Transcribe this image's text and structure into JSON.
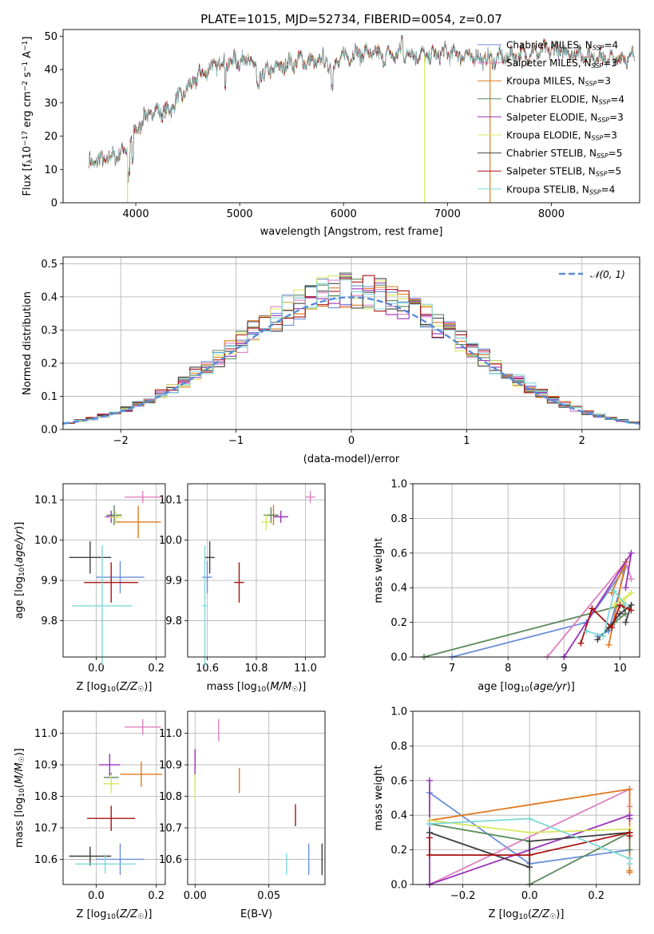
{
  "title": "PLATE=1015, MJD=52734, FIBERID=0054, z=0.07",
  "colors": {
    "Chabrier MILES": "#6a8fd8",
    "Salpeter MILES": "#e080c0",
    "Kroupa MILES": "#e07a20",
    "Chabrier ELODIE": "#5a8a5a",
    "Salpeter ELODIE": "#9933bb",
    "Kroupa ELODIE": "#d8e860",
    "Chabrier STELIB": "#404040",
    "Salpeter STELIB": "#aa1111",
    "Kroupa STELIB": "#7fd8d8",
    "gauss": "#5a8ad8"
  },
  "chart_data": [
    {
      "id": "spectrum",
      "type": "line",
      "title": "PLATE=1015, MJD=52734, FIBERID=0054, z=0.07",
      "xlabel": "wavelength [Angstrom, rest frame]",
      "ylabel": "Flux [f_λ 10^-17 erg cm^-2 s^-1 A^-1]",
      "xlim": [
        3300,
        8850
      ],
      "ylim": [
        0,
        52
      ],
      "xticks": [
        4000,
        5000,
        6000,
        7000,
        8000
      ],
      "yticks": [
        0,
        10,
        20,
        30,
        40,
        50
      ],
      "legend_loc": "upper right",
      "legend": [
        {
          "name": "Chabrier MILES",
          "nssp": 4
        },
        {
          "name": "Salpeter MILES",
          "nssp": 3
        },
        {
          "name": "Kroupa MILES",
          "nssp": 3
        },
        {
          "name": "Chabrier ELODIE",
          "nssp": 4
        },
        {
          "name": "Salpeter ELODIE",
          "nssp": 3
        },
        {
          "name": "Kroupa ELODIE",
          "nssp": 3
        },
        {
          "name": "Chabrier STELIB",
          "nssp": 5
        },
        {
          "name": "Salpeter STELIB",
          "nssp": 5
        },
        {
          "name": "Kroupa STELIB",
          "nssp": 4
        }
      ],
      "envelope": {
        "x": [
          3550,
          3700,
          3800,
          3900,
          3950,
          4000,
          4050,
          4100,
          4200,
          4300,
          4400,
          4500,
          4600,
          4700,
          4800,
          4900,
          5000,
          5100,
          5200,
          5300,
          5400,
          5500,
          5600,
          5700,
          5800,
          5900,
          6000,
          6200,
          6400,
          6600,
          6800,
          7000,
          7200,
          7400,
          7600,
          7800,
          8000,
          8200,
          8400,
          8600,
          8800
        ],
        "y": [
          12,
          13,
          14,
          16,
          18,
          22,
          24,
          26,
          28,
          27,
          31,
          34,
          38,
          40,
          42,
          42,
          43,
          43,
          38,
          40,
          41,
          42,
          43,
          42,
          43,
          41,
          44,
          45,
          44,
          45,
          44,
          45,
          44,
          43,
          44,
          45,
          46,
          45,
          44,
          43,
          44
        ]
      },
      "dropouts": [
        {
          "x": 3920,
          "y": 0
        },
        {
          "x": 6780,
          "y": 0
        },
        {
          "x": 7410,
          "y": 0
        }
      ]
    },
    {
      "id": "residuals",
      "type": "histogram",
      "xlabel": "(data-model)/error",
      "ylabel": "Normed distribution",
      "xlim": [
        -2.5,
        2.5
      ],
      "ylim": [
        0,
        0.52
      ],
      "xticks": [
        -2,
        -1,
        0,
        1,
        2
      ],
      "yticks": [
        0.0,
        0.1,
        0.2,
        0.3,
        0.4,
        0.5
      ],
      "grid": true,
      "legend": [
        {
          "name": "𝒩(0, 1)"
        }
      ],
      "legend_loc": "upper right",
      "bin_width": 0.1,
      "reference": "gaussian mean 0, sigma 1"
    },
    {
      "id": "age_vs_Z",
      "type": "scatter",
      "xlabel": "Z [log10(Z/Z☉)]",
      "ylabel": "age [log10(age/yr)]",
      "xlim": [
        -0.11,
        0.23
      ],
      "ylim": [
        9.71,
        10.14
      ],
      "xticks": [
        0.0,
        0.2
      ],
      "yticks": [
        9.8,
        9.9,
        10.0,
        10.1
      ],
      "grid": true,
      "points": [
        {
          "model": "Salpeter MILES",
          "x": 0.155,
          "y": 10.107,
          "xerr": 0.06,
          "yerr": 0.015
        },
        {
          "model": "Kroupa MILES",
          "x": 0.14,
          "y": 10.045,
          "xerr": 0.075,
          "yerr": 0.04
        },
        {
          "model": "Chabrier ELODIE",
          "x": 0.06,
          "y": 10.062,
          "xerr": 0.025,
          "yerr": 0.025
        },
        {
          "model": "Salpeter ELODIE",
          "x": 0.05,
          "y": 10.058,
          "xerr": 0.02,
          "yerr": 0.015
        },
        {
          "model": "Kroupa ELODIE",
          "x": 0.065,
          "y": 10.057,
          "xerr": 0.02,
          "yerr": 0.015
        },
        {
          "model": "Chabrier STELIB",
          "x": -0.02,
          "y": 9.957,
          "xerr": 0.07,
          "yerr": 0.04
        },
        {
          "model": "Chabrier MILES",
          "x": 0.08,
          "y": 9.908,
          "xerr": 0.08,
          "yerr": 0.04
        },
        {
          "model": "Salpeter STELIB",
          "x": 0.05,
          "y": 9.895,
          "xerr": 0.09,
          "yerr": 0.05
        },
        {
          "model": "Kroupa STELIB",
          "x": 0.02,
          "y": 9.837,
          "xerr": 0.1,
          "yerr": 0.15
        }
      ]
    },
    {
      "id": "age_vs_mass",
      "type": "scatter",
      "xlabel": "mass [log10(M/M☉)]",
      "xlim": [
        10.52,
        11.08
      ],
      "ylim": [
        9.71,
        10.14
      ],
      "xticks": [
        10.6,
        10.8,
        11.0
      ],
      "yticks": [
        9.8,
        9.9,
        10.0,
        10.1
      ],
      "grid": true,
      "points": [
        {
          "model": "Salpeter MILES",
          "x": 11.02,
          "y": 10.107,
          "xerr": 0.02,
          "yerr": 0.015
        },
        {
          "model": "Kroupa MILES",
          "x": 10.87,
          "y": 10.062,
          "xerr": 0.02,
          "yerr": 0.025
        },
        {
          "model": "Chabrier ELODIE",
          "x": 10.86,
          "y": 10.062,
          "xerr": 0.03,
          "yerr": 0.02
        },
        {
          "model": "Salpeter ELODIE",
          "x": 10.9,
          "y": 10.058,
          "xerr": 0.03,
          "yerr": 0.015
        },
        {
          "model": "Kroupa ELODIE",
          "x": 10.84,
          "y": 10.045,
          "xerr": 0.02,
          "yerr": 0.02
        },
        {
          "model": "Chabrier STELIB",
          "x": 10.61,
          "y": 9.957,
          "xerr": 0.02,
          "yerr": 0.04
        },
        {
          "model": "Chabrier MILES",
          "x": 10.6,
          "y": 9.908,
          "xerr": 0.02,
          "yerr": 0.04
        },
        {
          "model": "Salpeter STELIB",
          "x": 10.73,
          "y": 9.895,
          "xerr": 0.02,
          "yerr": 0.05
        },
        {
          "model": "Kroupa STELIB",
          "x": 10.59,
          "y": 9.837,
          "xerr": 0.01,
          "yerr": 0.15
        }
      ]
    },
    {
      "id": "weight_vs_age",
      "type": "line",
      "xlabel": "age [log10(age/yr)]",
      "ylabel": "mass weight",
      "xlim": [
        6.3,
        10.35
      ],
      "ylim": [
        0.0,
        1.0
      ],
      "xticks": [
        7,
        8,
        9,
        10
      ],
      "yticks": [
        0.0,
        0.2,
        0.4,
        0.6,
        0.8,
        1.0
      ],
      "grid": true,
      "series": [
        {
          "model": "Chabrier MILES",
          "x": [
            7.0,
            9.4,
            10.1,
            9.8,
            9.6
          ],
          "y": [
            0.0,
            0.2,
            0.52,
            0.15,
            0.12
          ]
        },
        {
          "model": "Salpeter MILES",
          "x": [
            8.7,
            10.1,
            10.2
          ],
          "y": [
            0.0,
            0.55,
            0.45
          ]
        },
        {
          "model": "Kroupa MILES",
          "x": [
            9.8,
            10.1,
            9.85
          ],
          "y": [
            0.07,
            0.55,
            0.37
          ]
        },
        {
          "model": "Chabrier ELODIE",
          "x": [
            6.5,
            10.05,
            10.1,
            9.9
          ],
          "y": [
            0.0,
            0.3,
            0.25,
            0.2
          ]
        },
        {
          "model": "Salpeter ELODIE",
          "x": [
            9.0,
            10.2,
            10.1
          ],
          "y": [
            0.0,
            0.6,
            0.4
          ]
        },
        {
          "model": "Kroupa ELODIE",
          "x": [
            9.9,
            10.2,
            10.05
          ],
          "y": [
            0.3,
            0.37,
            0.32
          ]
        },
        {
          "model": "Chabrier STELIB",
          "x": [
            9.6,
            9.8,
            10.0,
            10.2,
            10.1
          ],
          "y": [
            0.1,
            0.17,
            0.25,
            0.3,
            0.2
          ]
        },
        {
          "model": "Salpeter STELIB",
          "x": [
            9.3,
            9.5,
            9.85,
            10.0,
            10.2
          ],
          "y": [
            0.08,
            0.28,
            0.17,
            0.3,
            0.27
          ]
        },
        {
          "model": "Kroupa STELIB",
          "x": [
            9.4,
            9.7,
            9.9,
            10.1
          ],
          "y": [
            0.15,
            0.12,
            0.38,
            0.3
          ]
        }
      ]
    },
    {
      "id": "mass_vs_Z",
      "type": "scatter",
      "xlabel": "Z [log10(Z/Z☉)]",
      "ylabel": "mass [log10(M/M☉)]",
      "xlim": [
        -0.11,
        0.23
      ],
      "ylim": [
        10.52,
        11.07
      ],
      "xticks": [
        0.0,
        0.2
      ],
      "yticks": [
        10.6,
        10.7,
        10.8,
        10.9,
        11.0
      ],
      "grid": true,
      "points": [
        {
          "model": "Salpeter MILES",
          "x": 0.155,
          "y": 11.02,
          "xerr": 0.06,
          "yerr": 0.025
        },
        {
          "model": "Kroupa MILES",
          "x": 0.15,
          "y": 10.87,
          "xerr": 0.07,
          "yerr": 0.04
        },
        {
          "model": "Salpeter ELODIE",
          "x": 0.045,
          "y": 10.9,
          "xerr": 0.035,
          "yerr": 0.035
        },
        {
          "model": "Chabrier ELODIE",
          "x": 0.05,
          "y": 10.86,
          "xerr": 0.025,
          "yerr": 0.015
        },
        {
          "model": "Kroupa ELODIE",
          "x": 0.05,
          "y": 10.84,
          "xerr": 0.025,
          "yerr": 0.03
        },
        {
          "model": "Salpeter STELIB",
          "x": 0.05,
          "y": 10.73,
          "xerr": 0.08,
          "yerr": 0.04
        },
        {
          "model": "Chabrier MILES",
          "x": 0.08,
          "y": 10.6,
          "xerr": 0.08,
          "yerr": 0.05
        },
        {
          "model": "Chabrier STELIB",
          "x": -0.02,
          "y": 10.61,
          "xerr": 0.07,
          "yerr": 0.03
        },
        {
          "model": "Kroupa STELIB",
          "x": 0.03,
          "y": 10.585,
          "xerr": 0.1,
          "yerr": 0.03
        }
      ]
    },
    {
      "id": "mass_vs_ebv",
      "type": "scatter",
      "xlabel": "E(B-V)",
      "xlim": [
        -0.005,
        0.088
      ],
      "ylim": [
        10.52,
        11.07
      ],
      "xticks": [
        0.0,
        0.05
      ],
      "yticks": [
        10.6,
        10.7,
        10.8,
        10.9,
        11.0
      ],
      "grid": true,
      "points": [
        {
          "model": "Salpeter MILES",
          "x": 0.016,
          "y": 11.01,
          "yerr": 0.035
        },
        {
          "model": "Salpeter ELODIE",
          "x": 0.0,
          "y": 10.9,
          "yerr": 0.05
        },
        {
          "model": "Kroupa ELODIE",
          "x": 0.0,
          "y": 10.83,
          "yerr": 0.04
        },
        {
          "model": "Kroupa MILES",
          "x": 0.03,
          "y": 10.85,
          "yerr": 0.04
        },
        {
          "model": "Salpeter STELIB",
          "x": 0.068,
          "y": 10.74,
          "yerr": 0.035
        },
        {
          "model": "Kroupa STELIB",
          "x": 0.062,
          "y": 10.585,
          "yerr": 0.035
        },
        {
          "model": "Chabrier MILES",
          "x": 0.077,
          "y": 10.6,
          "yerr": 0.05
        },
        {
          "model": "Chabrier STELIB",
          "x": 0.086,
          "y": 10.6,
          "yerr": 0.05
        }
      ]
    },
    {
      "id": "weight_vs_Z",
      "type": "line",
      "xlabel": "Z [log10(Z/Z☉)]",
      "ylabel": "mass weight",
      "xlim": [
        -0.35,
        0.33
      ],
      "ylim": [
        0.0,
        1.0
      ],
      "xticks": [
        -0.2,
        0.0,
        0.2
      ],
      "yticks": [
        0.0,
        0.2,
        0.4,
        0.6,
        0.8,
        1.0
      ],
      "grid": true,
      "series": [
        {
          "model": "Chabrier MILES",
          "x": [
            -0.3,
            0.0,
            0.3,
            0.3
          ],
          "y": [
            0.53,
            0.12,
            0.2,
            0.15
          ]
        },
        {
          "model": "Salpeter MILES",
          "x": [
            -0.3,
            0.3,
            0.3
          ],
          "y": [
            0.0,
            0.55,
            0.45
          ]
        },
        {
          "model": "Kroupa MILES",
          "x": [
            -0.3,
            0.3,
            0.3,
            0.3
          ],
          "y": [
            0.37,
            0.55,
            0.07,
            0.08
          ]
        },
        {
          "model": "Chabrier ELODIE",
          "x": [
            -0.3,
            0.0,
            0.0,
            0.3,
            0.3
          ],
          "y": [
            0.35,
            0.25,
            0.0,
            0.3,
            0.2
          ]
        },
        {
          "model": "Salpeter ELODIE",
          "x": [
            -0.3,
            -0.3,
            0.3,
            0.3
          ],
          "y": [
            0.6,
            0.0,
            0.4,
            0.38
          ]
        },
        {
          "model": "Kroupa ELODIE",
          "x": [
            -0.3,
            0.0,
            0.3
          ],
          "y": [
            0.37,
            0.3,
            0.32
          ]
        },
        {
          "model": "Chabrier STELIB",
          "x": [
            -0.3,
            0.0,
            0.0,
            0.3
          ],
          "y": [
            0.3,
            0.1,
            0.25,
            0.3
          ]
        },
        {
          "model": "Salpeter STELIB",
          "x": [
            -0.3,
            -0.3,
            0.0,
            0.3,
            0.3
          ],
          "y": [
            0.27,
            0.17,
            0.17,
            0.3,
            0.28
          ]
        },
        {
          "model": "Kroupa STELIB",
          "x": [
            -0.3,
            0.0,
            0.3,
            0.3
          ],
          "y": [
            0.35,
            0.38,
            0.15,
            0.12
          ]
        }
      ]
    }
  ]
}
